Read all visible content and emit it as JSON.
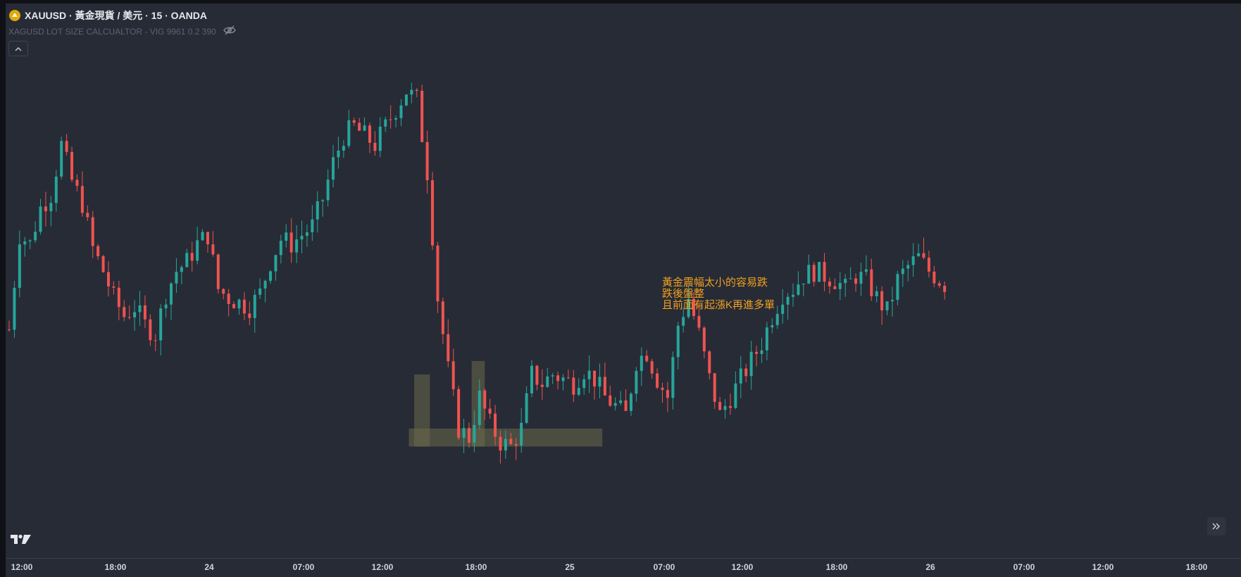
{
  "header": {
    "symbol_title": "XAUUSD · 黃金現貨 / 美元 · 15 · OANDA",
    "indicator_label": "XAGUSD LOT SIZE CALCUALTOR - VIG 9961 0.2 390"
  },
  "icons": {
    "symbol_logo": "gold-coin-icon",
    "indicator_visibility": "eye-off-icon",
    "collapse": "chevron-up-icon",
    "brand": "tradingview-logo",
    "scroll": "double-chevron-right-icon"
  },
  "annotation": {
    "lines": [
      "黃金震幅太小的容易跌",
      "跌後盤整",
      "且前面有起漲K再進多單"
    ],
    "color": "#f2a01e"
  },
  "colors": {
    "background": "#272b36",
    "up": "#26a69a",
    "down": "#ef5350",
    "zone": "#6b6a4a"
  },
  "chart_data": {
    "type": "candlestick",
    "timeframe": "15",
    "x_tick_labels": [
      "12:00",
      "18:00",
      "24",
      "07:00",
      "12:00",
      "18:00",
      "25",
      "07:00",
      "12:00",
      "18:00",
      "26",
      "07:00",
      "12:00",
      "18:00"
    ],
    "close_path": [
      [
        0,
        0.37
      ],
      [
        2,
        0.58
      ],
      [
        4,
        0.56
      ],
      [
        6,
        0.64
      ],
      [
        8,
        0.67
      ],
      [
        10,
        0.78
      ],
      [
        12,
        0.7
      ],
      [
        14,
        0.65
      ],
      [
        16,
        0.55
      ],
      [
        18,
        0.5
      ],
      [
        20,
        0.44
      ],
      [
        22,
        0.4
      ],
      [
        24,
        0.42
      ],
      [
        26,
        0.38
      ],
      [
        28,
        0.36
      ],
      [
        30,
        0.45
      ],
      [
        32,
        0.5
      ],
      [
        34,
        0.52
      ],
      [
        36,
        0.56
      ],
      [
        38,
        0.58
      ],
      [
        40,
        0.46
      ],
      [
        42,
        0.44
      ],
      [
        44,
        0.43
      ],
      [
        46,
        0.42
      ],
      [
        48,
        0.45
      ],
      [
        50,
        0.52
      ],
      [
        52,
        0.57
      ],
      [
        54,
        0.56
      ],
      [
        56,
        0.58
      ],
      [
        58,
        0.6
      ],
      [
        60,
        0.66
      ],
      [
        62,
        0.74
      ],
      [
        64,
        0.8
      ],
      [
        66,
        0.82
      ],
      [
        68,
        0.8
      ],
      [
        70,
        0.78
      ],
      [
        72,
        0.82
      ],
      [
        74,
        0.86
      ],
      [
        76,
        0.9
      ],
      [
        78,
        0.88
      ],
      [
        80,
        0.72
      ],
      [
        82,
        0.44
      ],
      [
        84,
        0.28
      ],
      [
        86,
        0.15
      ],
      [
        88,
        0.13
      ],
      [
        90,
        0.22
      ],
      [
        92,
        0.16
      ],
      [
        94,
        0.12
      ],
      [
        96,
        0.11
      ],
      [
        98,
        0.15
      ],
      [
        100,
        0.27
      ],
      [
        102,
        0.25
      ],
      [
        104,
        0.27
      ],
      [
        106,
        0.26
      ],
      [
        108,
        0.25
      ],
      [
        110,
        0.28
      ],
      [
        112,
        0.26
      ],
      [
        114,
        0.22
      ],
      [
        116,
        0.2
      ],
      [
        118,
        0.18
      ],
      [
        120,
        0.3
      ],
      [
        122,
        0.32
      ],
      [
        124,
        0.26
      ],
      [
        126,
        0.22
      ],
      [
        128,
        0.38
      ],
      [
        130,
        0.44
      ],
      [
        132,
        0.36
      ],
      [
        134,
        0.26
      ],
      [
        136,
        0.18
      ],
      [
        138,
        0.22
      ],
      [
        140,
        0.26
      ],
      [
        142,
        0.3
      ],
      [
        144,
        0.34
      ],
      [
        146,
        0.4
      ],
      [
        148,
        0.45
      ],
      [
        150,
        0.46
      ],
      [
        152,
        0.49
      ],
      [
        154,
        0.5
      ],
      [
        156,
        0.49
      ],
      [
        158,
        0.48
      ],
      [
        160,
        0.46
      ],
      [
        162,
        0.49
      ],
      [
        164,
        0.48
      ],
      [
        166,
        0.44
      ],
      [
        168,
        0.41
      ],
      [
        170,
        0.48
      ],
      [
        172,
        0.51
      ],
      [
        174,
        0.53
      ],
      [
        176,
        0.5
      ],
      [
        179,
        0.47
      ]
    ],
    "zones": [
      {
        "from": 77.5,
        "to": 80.5,
        "low": 0.11,
        "high": 0.27
      },
      {
        "from": 88.5,
        "to": 91,
        "low": 0.11,
        "high": 0.3
      },
      {
        "from": 76.5,
        "to": 113.5,
        "low": 0.11,
        "high": 0.15
      }
    ],
    "y_range": [
      0,
      1
    ],
    "grid": false,
    "legend": "none"
  }
}
